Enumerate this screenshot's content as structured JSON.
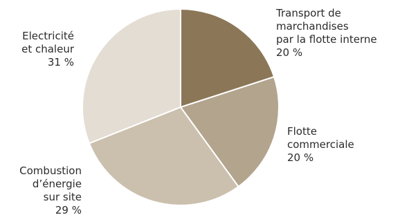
{
  "chart_data": {
    "type": "pie",
    "start_angle_deg": 0,
    "direction": "clockwise",
    "slices": [
      {
        "label_lines": [
          "Transport de",
          "marchandises",
          "par la flotte interne"
        ],
        "value": 20,
        "value_text": "20 %",
        "color": "#8b7757"
      },
      {
        "label_lines": [
          "Flotte",
          "commerciale"
        ],
        "value": 20,
        "value_text": "20 %",
        "color": "#b3a48e"
      },
      {
        "label_lines": [
          "Combustion",
          "d’énergie",
          "sur site"
        ],
        "value": 29,
        "value_text": "29 %",
        "color": "#cbbfae"
      },
      {
        "label_lines": [
          "Electricité",
          "et chaleur"
        ],
        "value": 31,
        "value_text": "31 %",
        "color": "#e4ddd3"
      }
    ]
  }
}
